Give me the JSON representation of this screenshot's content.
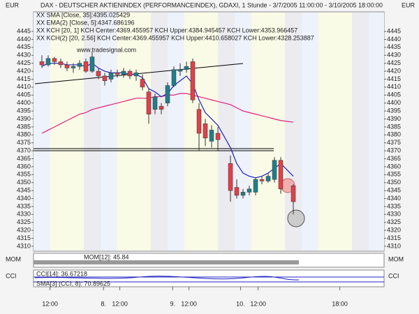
{
  "chart_data": {
    "type": "candlestick",
    "title": "DAX - DEUTSCHER AKTIENINDEX (PERFORMANCEINDEX), GDAXI, 1 Stunde - 3/7/2005 11:00:00 - 3/10/2005 18:00:00",
    "currency": "EUR",
    "watermark": "www.tradesignal.com",
    "legend": [
      {
        "text": "XX SMA [Close, 35]:4395.025429",
        "color": "#e0207a"
      },
      {
        "text": "XX EMA(2) [Close, 5]:4347.686196",
        "color": "#2020c0"
      },
      {
        "text": "XX KCH [20, 1] KCH Center:4369.455957 KCH Upper:4384.945457 KCH Lower:4353.966457",
        "color": "#666666"
      },
      {
        "text": "XX KCH(2) [20, 2.56] KCH Center:4369.455957 KCH Upper:4410.658027 KCH Lower:4328.253887",
        "color": "#666666"
      }
    ],
    "x": [
      0,
      1,
      2,
      3,
      4,
      5,
      6,
      7,
      8,
      9,
      10,
      11,
      12,
      13,
      14,
      15,
      16,
      17,
      18,
      19,
      20,
      21,
      22,
      23,
      24,
      25,
      26,
      27,
      28,
      30,
      31,
      32,
      33,
      34,
      35,
      36,
      37,
      38,
      40
    ],
    "open": [
      4426,
      4424,
      4428,
      4426,
      4424,
      4422,
      4423,
      4426,
      4420,
      4420,
      4417,
      4415,
      4419,
      4418,
      4420,
      4417,
      4415,
      4407,
      4396,
      4398,
      4400,
      4411,
      4420,
      4421,
      4426,
      4396,
      4387,
      4376,
      4381,
      4362,
      4347,
      4342,
      4344,
      4344,
      4352,
      4351,
      4352,
      4364,
      4348
    ],
    "high": [
      4430,
      4430,
      4429,
      4428,
      4426,
      4425,
      4427,
      4428,
      4432,
      4422,
      4419,
      4421,
      4421,
      4422,
      4421,
      4421,
      4418,
      4409,
      4406,
      4400,
      4413,
      4423,
      4425,
      4426,
      4428,
      4400,
      4390,
      4386,
      4385,
      4367,
      4352,
      4346,
      4348,
      4353,
      4354,
      4356,
      4366,
      4366,
      4349
    ],
    "low": [
      4422,
      4423,
      4424,
      4422,
      4420,
      4419,
      4421,
      4419,
      4419,
      4415,
      4411,
      4413,
      4416,
      4416,
      4415,
      4414,
      4408,
      4387,
      4393,
      4393,
      4398,
      4410,
      4417,
      4419,
      4400,
      4370,
      4373,
      4372,
      4370,
      4338,
      4340,
      4340,
      4342,
      4342,
      4349,
      4350,
      4350,
      4343,
      4330
    ],
    "close": [
      4424,
      4428,
      4426,
      4424,
      4422,
      4423,
      4425,
      4420,
      4429,
      4417,
      4414,
      4419,
      4418,
      4420,
      4417,
      4419,
      4410,
      4393,
      4404,
      4396,
      4411,
      4421,
      4421,
      4423,
      4402,
      4381,
      4378,
      4383,
      4377,
      4345,
      4342,
      4344,
      4346,
      4352,
      4351,
      4354,
      4364,
      4346,
      4338
    ],
    "up_color": "#1f7f8a",
    "down_color": "#e0404a",
    "series": [
      {
        "name": "SMA",
        "color": "#e0207a",
        "values": [
          4381,
          4383,
          4385,
          4387,
          4389,
          4391,
          4393,
          4394,
          4396,
          4397,
          4398,
          4399,
          4400,
          4401,
          4402,
          4403,
          4403,
          4403,
          4404,
          4404,
          4405,
          4405,
          4406,
          4406,
          4405,
          4404,
          4403,
          4402,
          4401,
          4399,
          4397,
          4395,
          4394,
          4393,
          4392,
          4391,
          4390,
          4389,
          4388
        ]
      },
      {
        "name": "EMA",
        "color": "#2020c0",
        "values": [
          4423,
          4425,
          4425,
          4425,
          4424,
          4424,
          4424,
          4423,
          4425,
          4422,
          4420,
          4419,
          4419,
          4419,
          4418,
          4418,
          4416,
          4409,
          4407,
          4404,
          4406,
          4411,
          4414,
          4417,
          4412,
          4402,
          4394,
          4390,
          4386,
          4372,
          4362,
          4356,
          4354,
          4353,
          4354,
          4356,
          4359,
          4362,
          4354
        ]
      }
    ],
    "xlim": [
      -1.33,
      54.44
    ],
    "ylim": [
      4306.9,
      4457.3
    ],
    "yticks": [
      4310,
      4315,
      4320,
      4325,
      4330,
      4335,
      4340,
      4345,
      4350,
      4355,
      4360,
      4365,
      4370,
      4375,
      4380,
      4385,
      4390,
      4395,
      4400,
      4405,
      4410,
      4415,
      4420,
      4425,
      4430,
      4435,
      4440,
      4445
    ],
    "xticks": [
      {
        "value": 1.3,
        "label": "12:00"
      },
      {
        "value": 9.8,
        "label": "8."
      },
      {
        "value": 12.4,
        "label": "12:00"
      },
      {
        "value": 20.8,
        "label": "9."
      },
      {
        "value": 23.4,
        "label": "12:00"
      },
      {
        "value": 31.6,
        "label": "10."
      },
      {
        "value": 34.4,
        "label": "12:00"
      },
      {
        "value": 47.4,
        "label": "18:00"
      }
    ],
    "panels": [
      "MOM",
      "CCI"
    ],
    "panel_labels": [
      "MOM[12]: 45.84",
      "CCI[14]: 36.67218",
      "SMA[3] (CCI, 8): 70.89625"
    ]
  }
}
